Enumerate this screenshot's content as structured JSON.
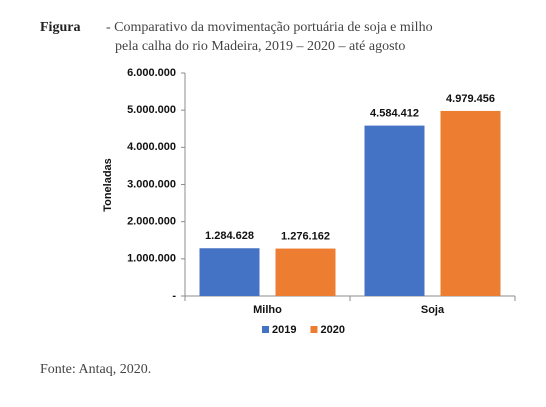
{
  "figure_label": "Figura",
  "title": [
    "- Comparativo da movimentação portuária de soja e milho",
    "pela calha do rio Madeira, 2019 – 2020 – até agosto"
  ],
  "source": "Fonte: Antaq, 2020.",
  "chart_data": {
    "type": "bar",
    "y_label": "Toneladas",
    "categories": [
      "Milho",
      "Soja"
    ],
    "series": [
      {
        "name": "2019",
        "color": "#4472c4",
        "values": [
          1284628,
          4584412
        ],
        "value_labels": [
          "1.284.628",
          "4.584.412"
        ]
      },
      {
        "name": "2020",
        "color": "#ed7d31",
        "values": [
          1276162,
          4979456
        ],
        "value_labels": [
          "1.276.162",
          "4.979.456"
        ]
      }
    ],
    "ylim": [
      0,
      6000000
    ],
    "yticks": [
      {
        "value": 0,
        "label": "-"
      },
      {
        "value": 1000000,
        "label": "1.000.000"
      },
      {
        "value": 2000000,
        "label": "2.000.000"
      },
      {
        "value": 3000000,
        "label": "3.000.000"
      },
      {
        "value": 4000000,
        "label": "4.000.000"
      },
      {
        "value": 5000000,
        "label": "5.000.000"
      },
      {
        "value": 6000000,
        "label": "6.000.000"
      }
    ],
    "grid": false,
    "legend": "bottom"
  }
}
